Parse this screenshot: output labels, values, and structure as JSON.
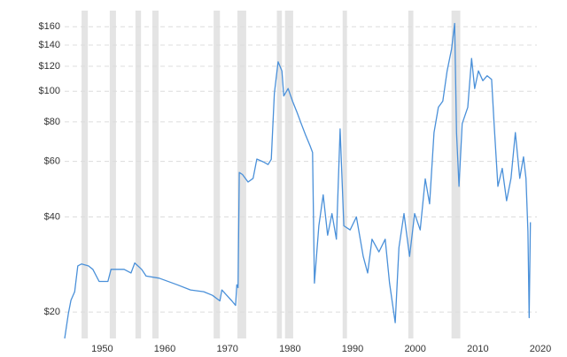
{
  "chart_data": {
    "type": "line",
    "x": [
      1944.0,
      1944.6,
      1945.0,
      1945.6,
      1946.1,
      1946.7,
      1947.8,
      1948.5,
      1949.5,
      1950.9,
      1951.4,
      1953.5,
      1954.6,
      1955.2,
      1956.3,
      1957.0,
      1959.1,
      1962.0,
      1964.1,
      1966.2,
      1967.6,
      1968.8,
      1969.1,
      1970.7,
      1971.3,
      1971.5,
      1971.7,
      1971.9,
      1972.4,
      1973.3,
      1974.1,
      1974.7,
      1975.7,
      1976.5,
      1977.0,
      1977.5,
      1978.1,
      1978.7,
      1979.0,
      1979.7,
      1980.4,
      1981.1,
      1981.8,
      1982.5,
      1983.2,
      1983.6,
      1983.9,
      1984.6,
      1985.3,
      1986.0,
      1986.7,
      1987.4,
      1988.0,
      1988.6,
      1989.6,
      1990.6,
      1991.7,
      1992.4,
      1993.1,
      1994.2,
      1995.2,
      1995.9,
      1996.8,
      1997.4,
      1998.2,
      1999.1,
      1999.9,
      2000.8,
      2001.6,
      2002.3,
      2003.0,
      2003.7,
      2004.4,
      2005.1,
      2005.8,
      2006.3,
      2006.6,
      2007.0,
      2007.5,
      2008.4,
      2009.0,
      2009.5,
      2010.1,
      2010.8,
      2011.5,
      2012.2,
      2012.6,
      2013.2,
      2013.9,
      2014.6,
      2015.3,
      2016.0,
      2016.7,
      2017.3,
      2017.7,
      2018.0,
      2018.2,
      2018.4
    ],
    "series": [
      {
        "color": "#4a90d9",
        "values": [
          16.5,
          19.8,
          21.8,
          23.2,
          28.0,
          28.4,
          28.0,
          27.3,
          25.0,
          25.0,
          27.3,
          27.3,
          26.6,
          28.6,
          27.3,
          26.0,
          25.6,
          24.4,
          23.5,
          23.2,
          22.6,
          21.7,
          23.5,
          21.7,
          21.0,
          24.4,
          23.9,
          55.3,
          54.5,
          51.6,
          53.0,
          61.0,
          59.8,
          58.6,
          60.9,
          98.6,
          124,
          116,
          96.6,
          102,
          93,
          86,
          78.8,
          72.6,
          67.2,
          64,
          24.7,
          37.5,
          47,
          35,
          41,
          34,
          76,
          37.5,
          36.4,
          40,
          30,
          26.6,
          34,
          31,
          34,
          24.7,
          18.5,
          32,
          41,
          30,
          41,
          36.4,
          52.8,
          44,
          74,
          89,
          93,
          116,
          136,
          164,
          74,
          50,
          79,
          89,
          127,
          102,
          116,
          108,
          112,
          109,
          79,
          50,
          57,
          45,
          53,
          74,
          53,
          62,
          53,
          36,
          19.2,
          38.5
        ]
      }
    ],
    "recessions": [
      [
        1946.7,
        1947.7
      ],
      [
        1951.2,
        1952.2
      ],
      [
        1955.3,
        1956.2
      ],
      [
        1958.0,
        1959.0
      ],
      [
        1967.8,
        1968.8
      ],
      [
        1971.6,
        1973.0
      ],
      [
        1977.9,
        1978.7
      ],
      [
        1979.2,
        1980.5
      ],
      [
        1988.4,
        1989.1
      ],
      [
        1998.9,
        1999.7
      ],
      [
        2005.8,
        2007.2
      ]
    ],
    "log_scale": true,
    "grid": true,
    "xlim": [
      1944,
      2020
    ],
    "xticks": [
      1950,
      1960,
      1970,
      1980,
      1990,
      2000,
      2010,
      2020
    ],
    "ylim": [
      16.5,
      180
    ],
    "yticks": [
      {
        "value": 20,
        "label": "$20"
      },
      {
        "value": 40,
        "label": "$40"
      },
      {
        "value": 60,
        "label": "$60"
      },
      {
        "value": 80,
        "label": "$80"
      },
      {
        "value": 100,
        "label": "$100"
      },
      {
        "value": 120,
        "label": "$120"
      },
      {
        "value": 140,
        "label": "$140"
      },
      {
        "value": 160,
        "label": "$160"
      }
    ]
  }
}
